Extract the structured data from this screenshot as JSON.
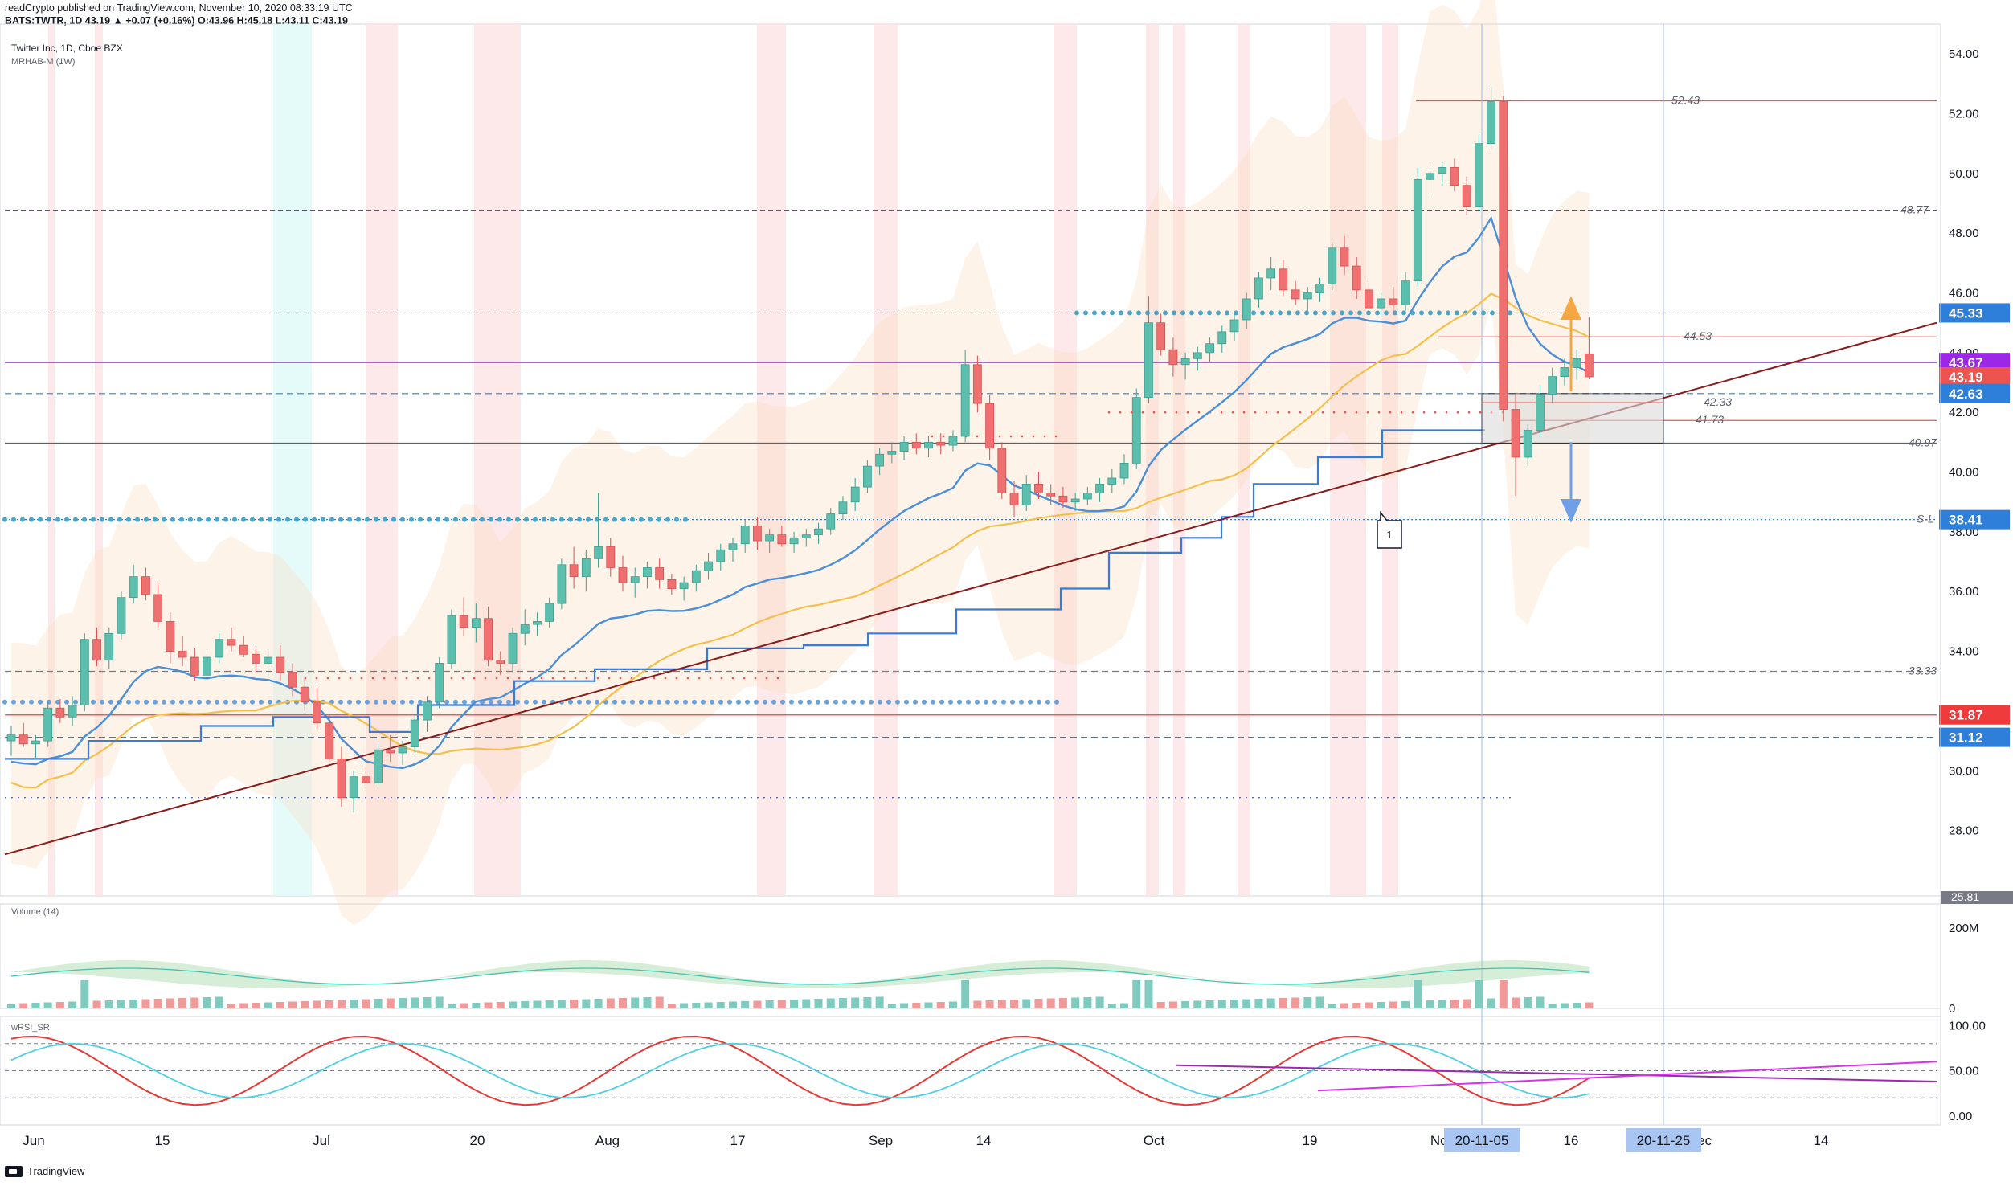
{
  "header": {
    "published": "readCrypto published on TradingView.com, November 10, 2020 08:33:19 UTC",
    "ticker_line": "BATS:TWTR, 1D 43.19 ▲ +0.07 (+0.16%) O:43.96 H:45.18 L:43.11 C:43.19"
  },
  "chart_data": {
    "type": "candlestick",
    "title": "Twitter Inc, 1D, Cboe BZX",
    "indicator": "MRHAB-M (1W)",
    "y_axis": {
      "ylim": [
        25.81,
        55.0
      ],
      "ticks": [
        "54.00",
        "52.00",
        "50.00",
        "48.00",
        "46.00",
        "44.00",
        "42.00",
        "40.00",
        "38.00",
        "36.00",
        "34.00",
        "32.00",
        "30.00",
        "28.00"
      ],
      "bottom_label": "25.81"
    },
    "x_axis": {
      "ticks": [
        "Jun",
        "15",
        "Jul",
        "20",
        "Aug",
        "17",
        "Sep",
        "14",
        "Oct",
        "19",
        "Nov",
        "16",
        "Dec",
        "14"
      ],
      "highlight_dates": [
        "20-11-05",
        "20-11-25"
      ]
    },
    "price_badges": [
      {
        "label": "45.33",
        "value": 45.33,
        "color": "#2e7fd9"
      },
      {
        "label": "43.67",
        "value": 43.67,
        "color": "#9c27e6"
      },
      {
        "label": "43.19",
        "value": 43.19,
        "color": "#ef5350"
      },
      {
        "label": "42.63",
        "value": 42.63,
        "color": "#2e7fd9"
      },
      {
        "label": "38.41",
        "value": 38.41,
        "color": "#2e7fd9"
      },
      {
        "label": "31.87",
        "value": 31.87,
        "color": "#ef3b3b"
      },
      {
        "label": "31.12",
        "value": 31.12,
        "color": "#2e7fd9"
      }
    ],
    "level_labels": [
      {
        "label": "52.43",
        "value": 52.43
      },
      {
        "label": "48.77",
        "value": 48.77
      },
      {
        "label": "44.53",
        "value": 44.53
      },
      {
        "label": "42.33",
        "value": 42.33
      },
      {
        "label": "41.73",
        "value": 41.73
      },
      {
        "label": "40.97",
        "value": 40.97
      },
      {
        "label": "S-L",
        "value": 38.41
      },
      {
        "label": "33.33",
        "value": 33.33
      }
    ],
    "annotation": "1",
    "candles": [
      [
        31.0,
        31.5,
        30.5,
        31.2
      ],
      [
        31.2,
        31.6,
        30.8,
        30.9
      ],
      [
        30.9,
        31.2,
        30.4,
        31.0
      ],
      [
        31.0,
        32.3,
        30.8,
        32.1
      ],
      [
        32.1,
        32.4,
        31.6,
        31.8
      ],
      [
        31.8,
        32.5,
        31.5,
        32.2
      ],
      [
        32.2,
        34.6,
        32.0,
        34.4
      ],
      [
        34.4,
        34.8,
        33.5,
        33.7
      ],
      [
        33.7,
        34.8,
        33.4,
        34.6
      ],
      [
        34.6,
        36.0,
        34.4,
        35.8
      ],
      [
        35.8,
        36.9,
        35.6,
        36.5
      ],
      [
        36.5,
        36.8,
        35.7,
        35.9
      ],
      [
        35.9,
        36.3,
        34.8,
        35.0
      ],
      [
        35.0,
        35.3,
        33.6,
        34.0
      ],
      [
        34.0,
        34.5,
        33.5,
        33.8
      ],
      [
        33.8,
        34.1,
        33.0,
        33.2
      ],
      [
        33.2,
        34.0,
        33.0,
        33.8
      ],
      [
        33.8,
        34.6,
        33.6,
        34.4
      ],
      [
        34.4,
        34.8,
        34.0,
        34.2
      ],
      [
        34.2,
        34.5,
        33.8,
        33.9
      ],
      [
        33.9,
        34.1,
        33.3,
        33.6
      ],
      [
        33.6,
        34.0,
        33.2,
        33.8
      ],
      [
        33.8,
        34.2,
        33.0,
        33.3
      ],
      [
        33.3,
        33.6,
        32.5,
        32.8
      ],
      [
        32.8,
        33.1,
        32.0,
        32.3
      ],
      [
        32.3,
        32.8,
        31.4,
        31.6
      ],
      [
        31.6,
        31.9,
        30.2,
        30.4
      ],
      [
        30.4,
        30.8,
        28.8,
        29.1
      ],
      [
        29.1,
        30.0,
        28.6,
        29.8
      ],
      [
        29.8,
        30.1,
        29.4,
        29.6
      ],
      [
        29.6,
        30.9,
        29.5,
        30.7
      ],
      [
        30.7,
        31.2,
        30.3,
        30.6
      ],
      [
        30.6,
        31.0,
        30.2,
        30.8
      ],
      [
        30.8,
        31.9,
        30.6,
        31.7
      ],
      [
        31.7,
        32.5,
        31.3,
        32.3
      ],
      [
        32.3,
        33.8,
        32.1,
        33.6
      ],
      [
        33.6,
        35.4,
        33.4,
        35.2
      ],
      [
        35.2,
        35.8,
        34.5,
        34.8
      ],
      [
        34.8,
        35.6,
        34.3,
        35.1
      ],
      [
        35.1,
        35.5,
        33.5,
        33.7
      ],
      [
        33.7,
        34.0,
        33.2,
        33.6
      ],
      [
        33.6,
        34.8,
        33.3,
        34.6
      ],
      [
        34.6,
        35.4,
        34.2,
        34.9
      ],
      [
        34.9,
        35.3,
        34.5,
        35.0
      ],
      [
        35.0,
        35.8,
        34.8,
        35.6
      ],
      [
        35.6,
        37.1,
        35.4,
        36.9
      ],
      [
        36.9,
        37.5,
        36.1,
        36.5
      ],
      [
        36.5,
        37.4,
        36.0,
        37.1
      ],
      [
        37.1,
        39.3,
        36.8,
        37.5
      ],
      [
        37.5,
        37.8,
        36.5,
        36.8
      ],
      [
        36.8,
        37.2,
        36.0,
        36.3
      ],
      [
        36.3,
        36.8,
        35.8,
        36.5
      ],
      [
        36.5,
        37.0,
        36.1,
        36.8
      ],
      [
        36.8,
        37.1,
        36.1,
        36.4
      ],
      [
        36.4,
        36.6,
        35.9,
        36.1
      ],
      [
        36.1,
        36.5,
        35.7,
        36.3
      ],
      [
        36.3,
        36.9,
        36.0,
        36.7
      ],
      [
        36.7,
        37.3,
        36.4,
        37.0
      ],
      [
        37.0,
        37.6,
        36.7,
        37.4
      ],
      [
        37.4,
        37.8,
        37.0,
        37.6
      ],
      [
        37.6,
        38.4,
        37.3,
        38.2
      ],
      [
        38.2,
        38.5,
        37.4,
        37.7
      ],
      [
        37.7,
        38.1,
        37.3,
        37.9
      ],
      [
        37.9,
        38.2,
        37.5,
        37.6
      ],
      [
        37.6,
        38.0,
        37.3,
        37.8
      ],
      [
        37.8,
        38.1,
        37.5,
        37.9
      ],
      [
        37.9,
        38.3,
        37.6,
        38.1
      ],
      [
        38.1,
        38.8,
        37.9,
        38.6
      ],
      [
        38.6,
        39.2,
        38.4,
        39.0
      ],
      [
        39.0,
        39.8,
        38.7,
        39.5
      ],
      [
        39.5,
        40.4,
        39.3,
        40.2
      ],
      [
        40.2,
        40.8,
        39.9,
        40.6
      ],
      [
        40.6,
        41.0,
        40.3,
        40.7
      ],
      [
        40.7,
        41.2,
        40.4,
        41.0
      ],
      [
        41.0,
        41.3,
        40.6,
        40.8
      ],
      [
        40.8,
        41.2,
        40.5,
        41.0
      ],
      [
        41.0,
        41.3,
        40.6,
        40.9
      ],
      [
        40.9,
        41.4,
        40.7,
        41.2
      ],
      [
        41.2,
        44.1,
        41.0,
        43.6
      ],
      [
        43.6,
        43.9,
        42.0,
        42.3
      ],
      [
        42.3,
        42.6,
        40.4,
        40.8
      ],
      [
        40.8,
        41.0,
        39.1,
        39.3
      ],
      [
        39.3,
        39.7,
        38.5,
        38.9
      ],
      [
        38.9,
        39.9,
        38.7,
        39.6
      ],
      [
        39.6,
        40.0,
        39.1,
        39.3
      ],
      [
        39.3,
        39.6,
        38.9,
        39.2
      ],
      [
        39.2,
        39.5,
        38.8,
        39.0
      ],
      [
        39.0,
        39.3,
        38.7,
        39.1
      ],
      [
        39.1,
        39.5,
        38.9,
        39.3
      ],
      [
        39.3,
        39.8,
        39.0,
        39.6
      ],
      [
        39.6,
        40.1,
        39.3,
        39.8
      ],
      [
        39.8,
        40.6,
        39.6,
        40.3
      ],
      [
        40.3,
        42.8,
        40.1,
        42.5
      ],
      [
        42.5,
        45.9,
        42.3,
        45.0
      ],
      [
        45.0,
        45.3,
        43.9,
        44.1
      ],
      [
        44.1,
        44.5,
        43.2,
        43.6
      ],
      [
        43.6,
        44.0,
        43.1,
        43.8
      ],
      [
        43.8,
        44.2,
        43.4,
        44.0
      ],
      [
        44.0,
        44.5,
        43.7,
        44.3
      ],
      [
        44.3,
        44.9,
        44.0,
        44.7
      ],
      [
        44.7,
        45.3,
        44.4,
        45.1
      ],
      [
        45.1,
        46.0,
        44.8,
        45.8
      ],
      [
        45.8,
        46.7,
        45.5,
        46.5
      ],
      [
        46.5,
        47.2,
        46.1,
        46.8
      ],
      [
        46.8,
        47.1,
        45.9,
        46.1
      ],
      [
        46.1,
        46.4,
        45.6,
        45.8
      ],
      [
        45.8,
        46.2,
        45.4,
        46.0
      ],
      [
        46.0,
        46.5,
        45.7,
        46.3
      ],
      [
        46.3,
        47.7,
        46.1,
        47.5
      ],
      [
        47.5,
        47.9,
        46.6,
        46.9
      ],
      [
        46.9,
        47.2,
        45.8,
        46.1
      ],
      [
        46.1,
        46.4,
        45.2,
        45.5
      ],
      [
        45.5,
        46.0,
        45.2,
        45.8
      ],
      [
        45.8,
        46.2,
        45.3,
        45.6
      ],
      [
        45.6,
        46.7,
        45.4,
        46.4
      ],
      [
        46.4,
        50.2,
        46.2,
        49.8
      ],
      [
        49.8,
        50.3,
        49.3,
        50.0
      ],
      [
        50.0,
        50.4,
        49.6,
        50.2
      ],
      [
        50.2,
        50.5,
        49.4,
        49.6
      ],
      [
        49.6,
        49.9,
        48.6,
        48.9
      ],
      [
        48.9,
        51.3,
        48.7,
        51.0
      ],
      [
        51.0,
        52.9,
        50.8,
        52.4
      ],
      [
        52.4,
        52.6,
        41.7,
        42.1
      ],
      [
        42.1,
        42.6,
        39.2,
        40.5
      ],
      [
        40.5,
        41.6,
        40.2,
        41.4
      ],
      [
        41.4,
        42.9,
        41.2,
        42.6
      ],
      [
        42.6,
        43.5,
        42.3,
        43.2
      ],
      [
        43.2,
        43.8,
        42.9,
        43.5
      ],
      [
        43.5,
        44.1,
        43.1,
        43.8
      ],
      [
        43.96,
        45.18,
        43.11,
        43.19
      ]
    ],
    "volume": {
      "label": "Volume (14)",
      "ticks": [
        "200M",
        "0"
      ],
      "ylim": [
        0,
        260
      ]
    },
    "wrsi": {
      "label": "wRSI_SR",
      "ticks": [
        "100.00",
        "50.00",
        "0.00"
      ],
      "ylim": [
        -10,
        110
      ]
    }
  }
}
